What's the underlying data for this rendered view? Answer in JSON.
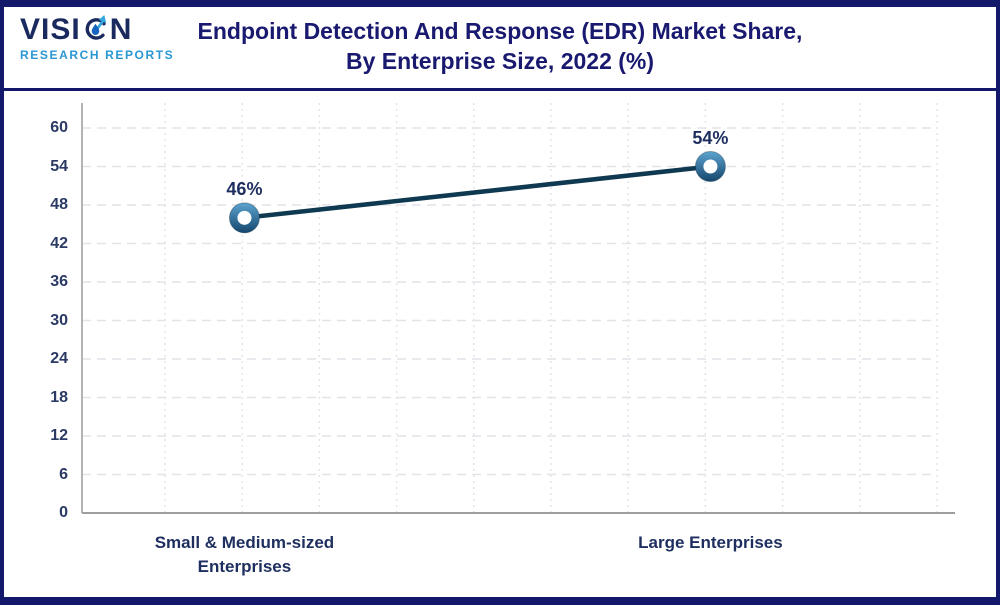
{
  "logo": {
    "brand_left": "VISI",
    "brand_right": "N",
    "subtitle": "RESEARCH REPORTS"
  },
  "header": {
    "title_line1": "Endpoint Detection And Response (EDR) Market Share,",
    "title_line2": "By Enterprise Size, 2022 (%)"
  },
  "chart_data": {
    "type": "line",
    "title": "Endpoint Detection And Response (EDR) Market Share, By Enterprise Size, 2022 (%)",
    "categories": [
      "Small & Medium-sized Enterprises",
      "Large Enterprises"
    ],
    "values": [
      46,
      54
    ],
    "point_labels": [
      "46%",
      "54%"
    ],
    "unit": "%",
    "xlabel": "",
    "ylabel": "",
    "ylim": [
      0,
      60
    ],
    "yticks": [
      0,
      6,
      12,
      18,
      24,
      30,
      36,
      42,
      48,
      54,
      60
    ],
    "grid": true,
    "legend": "none",
    "colors": {
      "line": "#0e3950",
      "marker_top": "#5ba4d0",
      "marker_bottom": "#15466d",
      "marker_hole": "#ffffff",
      "grid": "#e3e3e8",
      "axis": "#b3b3b3",
      "axis_bottom": "#9e9e9e",
      "tick_text": "#2a3a64",
      "label_text": "#1d2e5f",
      "title_text": "#191970",
      "border": "#14186b",
      "logo_blue": "#2a97d4"
    }
  }
}
